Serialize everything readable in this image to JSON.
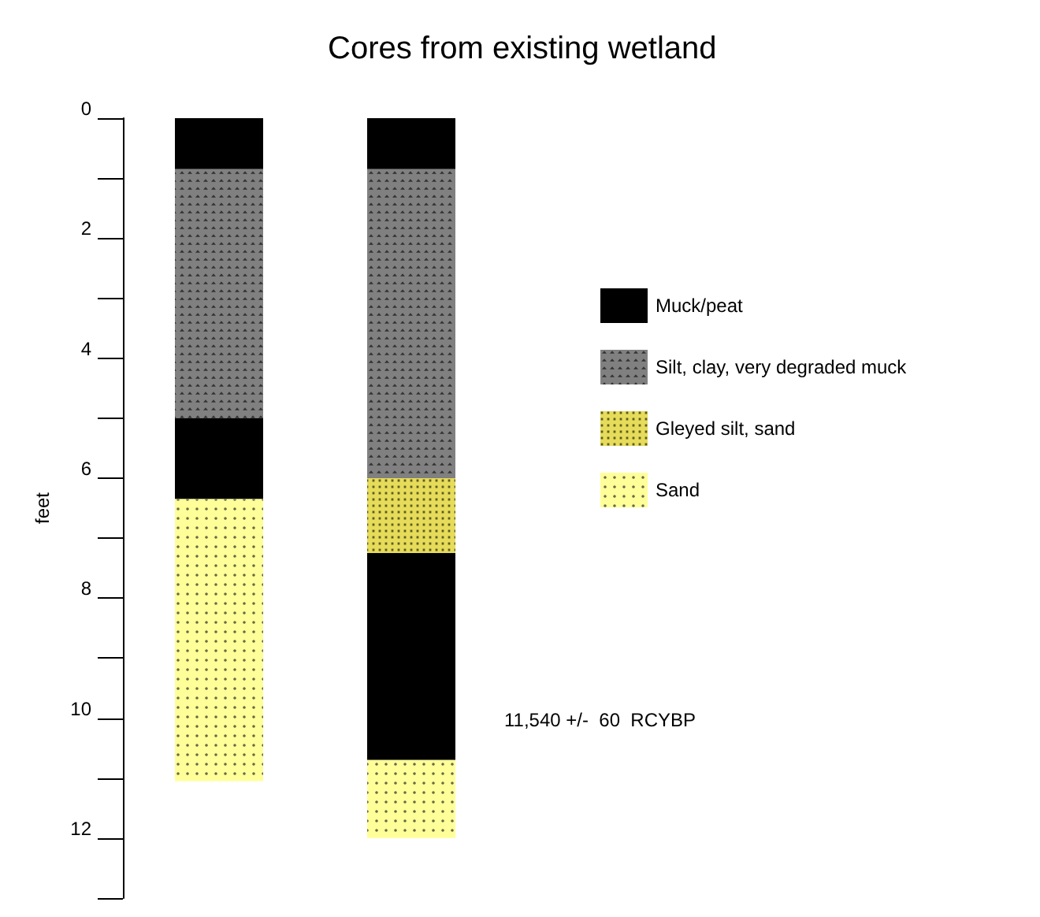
{
  "chart_data": {
    "type": "bar",
    "title": "Cores from existing wetland",
    "ylabel": "feet",
    "categories": [
      null,
      null
    ],
    "stacked": true,
    "series": [
      {
        "name": "Muck/peat",
        "color": "#000000",
        "values": [
          0.85,
          0.85
        ]
      },
      {
        "name": "Silt, clay, very degraded muck",
        "color": "#808080",
        "values": [
          4.15,
          5.15
        ]
      },
      {
        "color": "#000000",
        "values": [
          1.35,
          null
        ]
      },
      {
        "name": "Gleyed silt, sand",
        "color": "#e6dc5a",
        "values": [
          null,
          1.25
        ]
      },
      {
        "color": "#000000",
        "values": [
          null,
          3.45
        ]
      },
      {
        "name": "Sand",
        "color": "#ffff99",
        "values": [
          4.7,
          1.3
        ]
      }
    ],
    "ylim": [
      13,
      0
    ],
    "yticks": [
      0,
      {
        "value": 1,
        "label": null
      },
      2,
      {
        "value": 3,
        "label": null
      },
      4,
      {
        "value": 5,
        "label": null
      },
      6,
      {
        "value": 7,
        "label": null
      },
      8,
      {
        "value": 9,
        "label": null
      },
      10,
      {
        "value": 11,
        "label": null
      },
      12,
      {
        "value": 13,
        "label": null
      }
    ],
    "tick_labels": "y",
    "grid": false,
    "legend": "right",
    "annotations": [
      "11,540 +/-  60  RCYBP"
    ]
  }
}
